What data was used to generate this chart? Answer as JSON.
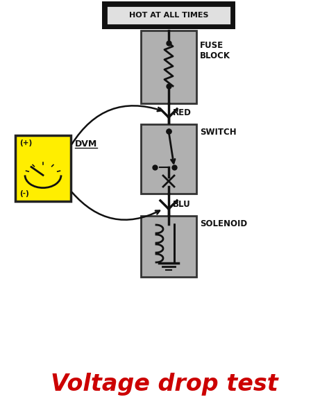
{
  "bg_color": "#ffffff",
  "title": "Voltage drop test",
  "title_color": "#cc0000",
  "title_fontsize": 24,
  "header_text": "HOT AT ALL TIMES",
  "header_bg": "#111111",
  "header_text_color": "#ffffff",
  "fuse_label": "FUSE\nBLOCK",
  "switch_label": "SWITCH",
  "solenoid_label": "SOLENOID",
  "red_label": "RED",
  "blu_label": "BLU",
  "dvm_label": "DVM",
  "plus_label": "(+)",
  "minus_label": "(-)",
  "box_gray": "#b0b0b0",
  "dvm_yellow": "#ffee00",
  "line_color": "#111111",
  "arrow_color": "#111111",
  "figw": 4.74,
  "figh": 5.72,
  "dpi": 100
}
